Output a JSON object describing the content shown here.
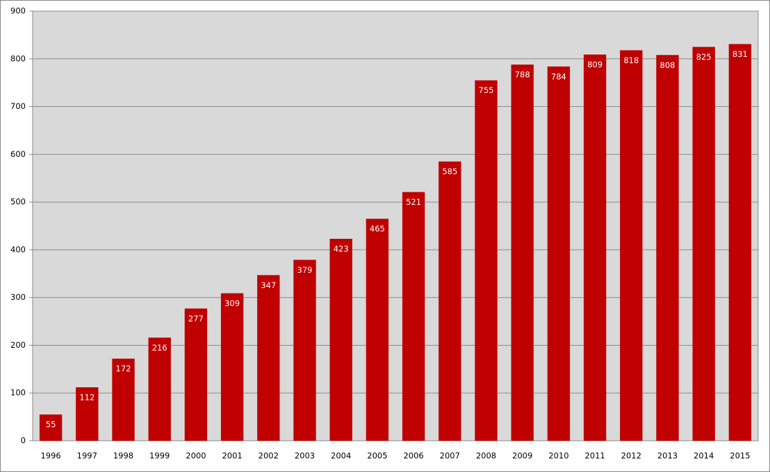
{
  "chart_data": {
    "type": "bar",
    "categories": [
      "1996",
      "1997",
      "1998",
      "1999",
      "2000",
      "2001",
      "2002",
      "2003",
      "2004",
      "2005",
      "2006",
      "2007",
      "2008",
      "2009",
      "2010",
      "2011",
      "2012",
      "2013",
      "2014",
      "2015"
    ],
    "values": [
      55,
      112,
      172,
      216,
      277,
      309,
      347,
      379,
      423,
      465,
      521,
      585,
      755,
      788,
      784,
      809,
      818,
      808,
      825,
      831
    ],
    "color": "#c00000",
    "ylim": [
      0,
      900
    ],
    "yticks": [
      0,
      100,
      200,
      300,
      400,
      500,
      600,
      700,
      800,
      900
    ],
    "grid": true
  }
}
